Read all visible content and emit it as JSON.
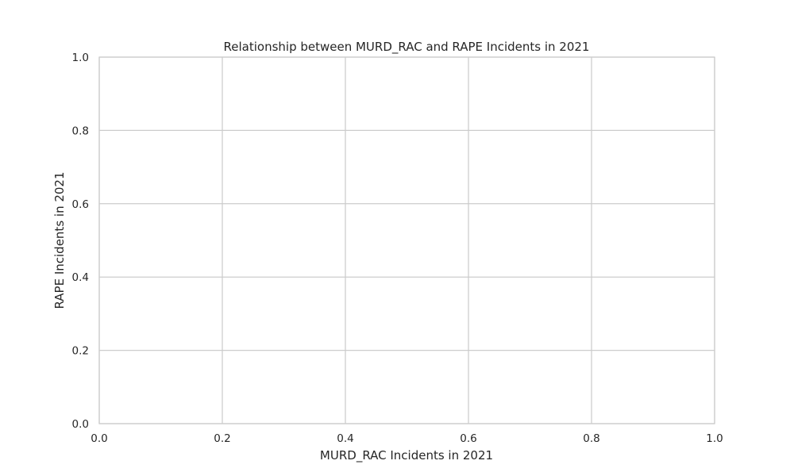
{
  "chart_data": {
    "type": "scatter",
    "title": "Relationship between MURD_RAC and RAPE Incidents in 2021",
    "xlabel": "MURD_RAC Incidents in 2021",
    "ylabel": "RAPE Incidents in 2021",
    "xlim": [
      0,
      1
    ],
    "ylim": [
      0,
      1
    ],
    "x_ticks": [
      "0.0",
      "0.2",
      "0.4",
      "0.6",
      "0.8",
      "1.0"
    ],
    "y_ticks": [
      "0.0",
      "0.2",
      "0.4",
      "0.6",
      "0.8",
      "1.0"
    ],
    "grid": true,
    "series": [
      {
        "x": [],
        "y": []
      }
    ],
    "colors": {
      "grid": "#cccccc",
      "spine": "#cccccc",
      "text": "#262626",
      "background": "#ffffff"
    }
  }
}
